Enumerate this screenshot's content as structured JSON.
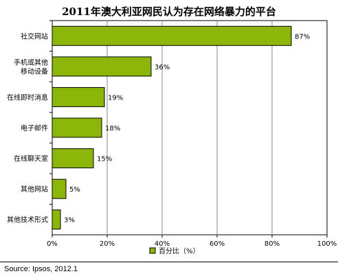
{
  "chart_data": {
    "type": "bar",
    "orientation": "horizontal",
    "title": "2011年澳大利亚网民认为存在网络暴力的平台",
    "categories": [
      [
        "社交网站"
      ],
      [
        "手机或其他",
        "移动设备"
      ],
      [
        "在线即时消息"
      ],
      [
        "电子邮件"
      ],
      [
        "在线聊天室"
      ],
      [
        "其他网站"
      ],
      [
        "其他技术形式"
      ]
    ],
    "series": [
      {
        "name": "百分比（%）",
        "values": [
          87,
          36,
          19,
          18,
          15,
          5,
          3
        ]
      }
    ],
    "value_labels": [
      "87%",
      "36%",
      "19%",
      "18%",
      "15%",
      "5%",
      "3%"
    ],
    "xlim": [
      0,
      100
    ],
    "x_ticks": [
      0,
      20,
      40,
      60,
      80,
      100
    ],
    "x_tick_labels": [
      "0%",
      "20%",
      "40%",
      "60%",
      "80%",
      "100%"
    ],
    "grid": true,
    "legend_position": "bottom",
    "bar_color": "#8DB60B",
    "bar_edge_color": "#000000"
  },
  "footer": {
    "source": "Source: Ipsos, 2012.1"
  }
}
